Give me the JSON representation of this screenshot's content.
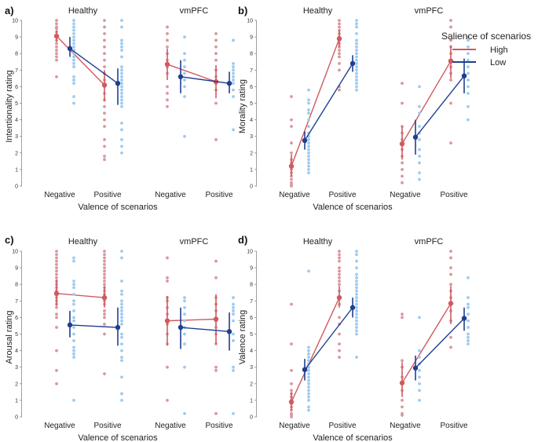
{
  "legend": {
    "title": "Salience of scenarios",
    "entries": [
      {
        "label": "High",
        "color": "#d05a5f",
        "dot_color": "#d9979d"
      },
      {
        "label": "Low",
        "color": "#1f3f8f",
        "dot_color": "#9dcbf0"
      }
    ]
  },
  "chart_data": [
    {
      "panel": "a)",
      "type": "scatter",
      "ylabel": "Intentionality rating",
      "xlabel": "Valence of scenarios",
      "ylim": [
        0,
        10
      ],
      "yticks": [
        "0",
        "1",
        "2",
        "3",
        "4",
        "5",
        "6",
        "7",
        "8",
        "9",
        "10"
      ],
      "groups": [
        "Healthy",
        "vmPFC"
      ],
      "categories": [
        "Negative",
        "Positive"
      ],
      "series": [
        {
          "name": "High",
          "group": "Healthy",
          "means": [
            9.05,
            6.1
          ],
          "errors": [
            [
              8.7,
              9.4
            ],
            [
              5.1,
              7.0
            ]
          ],
          "points": [
            [
              10,
              9.8,
              9.6,
              9.5,
              9.3,
              9.1,
              9.0,
              8.8,
              8.6,
              8.4,
              8.2,
              8.0,
              7.8,
              7.6,
              6.6
            ],
            [
              10,
              9.6,
              9.2,
              8.8,
              8.4,
              8.0,
              7.6,
              7.2,
              6.8,
              6.4,
              6.0,
              5.6,
              5.2,
              4.8,
              4.4,
              4.0,
              3.6,
              2.8,
              2.4,
              1.8,
              1.6
            ]
          ]
        },
        {
          "name": "Low",
          "group": "Healthy",
          "means": [
            8.3,
            6.2
          ],
          "errors": [
            [
              7.8,
              9.0
            ],
            [
              4.9,
              7.1
            ]
          ],
          "points": [
            [
              10,
              9.8,
              9.6,
              9.4,
              9.2,
              9.0,
              8.8,
              8.6,
              8.4,
              8.2,
              8.0,
              7.8,
              7.6,
              7.4,
              7.2,
              6.6,
              6.4,
              6.2,
              5.4,
              5.0
            ],
            [
              10,
              9.6,
              8.8,
              8.6,
              8.4,
              8.2,
              7.8,
              7.2,
              7.0,
              6.8,
              6.6,
              6.4,
              6.2,
              6.0,
              5.8,
              5.6,
              5.4,
              5.2,
              5.0,
              4.8,
              3.8,
              3.4,
              2.8,
              2.4,
              2.0
            ]
          ]
        },
        {
          "name": "High",
          "group": "vmPFC",
          "means": [
            7.35,
            6.3
          ],
          "errors": [
            [
              6.4,
              8.3
            ],
            [
              5.3,
              7.3
            ]
          ],
          "points": [
            [
              9.6,
              9.2,
              8.8,
              8.4,
              8.0,
              7.6,
              7.2,
              6.8,
              6.0,
              5.6,
              5.2,
              4.8
            ],
            [
              9.2,
              8.8,
              8.4,
              8.0,
              7.6,
              7.0,
              6.6,
              6.2,
              5.8,
              5.0,
              2.8
            ]
          ]
        },
        {
          "name": "Low",
          "group": "vmPFC",
          "means": [
            6.6,
            6.2
          ],
          "errors": [
            [
              5.6,
              7.6
            ],
            [
              5.6,
              6.9
            ]
          ],
          "points": [
            [
              9.0,
              8.0,
              7.6,
              7.2,
              6.8,
              6.4,
              6.0,
              5.4,
              3.0
            ],
            [
              8.8,
              7.4,
              7.2,
              7.0,
              6.8,
              6.6,
              6.4,
              6.2,
              5.8,
              5.4,
              3.4
            ]
          ]
        }
      ]
    },
    {
      "panel": "b)",
      "type": "scatter",
      "ylabel": "Morality rating",
      "xlabel": "Valence of scenarios",
      "ylim": [
        0,
        10
      ],
      "yticks": [
        "0",
        "1",
        "2",
        "3",
        "4",
        "5",
        "6",
        "7",
        "8",
        "9",
        "10"
      ],
      "groups": [
        "Healthy",
        "vmPFC"
      ],
      "categories": [
        "Negative",
        "Positive"
      ],
      "series": [
        {
          "name": "High",
          "group": "Healthy",
          "means": [
            1.2,
            8.9
          ],
          "errors": [
            [
              0.6,
              1.9
            ],
            [
              8.4,
              9.4
            ]
          ],
          "points": [
            [
              5.4,
              4.0,
              3.6,
              2.6,
              2.0,
              1.6,
              1.4,
              1.2,
              1.0,
              0.8,
              0.6,
              0.4,
              0.2,
              0.1,
              0.0
            ],
            [
              10,
              9.8,
              9.6,
              9.4,
              9.2,
              9.0,
              8.8,
              8.6,
              8.4,
              8.2,
              8.0,
              7.8,
              7.4,
              7.0,
              6.0,
              5.8
            ]
          ]
        },
        {
          "name": "Low",
          "group": "Healthy",
          "means": [
            2.75,
            7.4
          ],
          "errors": [
            [
              2.2,
              3.3
            ],
            [
              6.9,
              7.9
            ]
          ],
          "points": [
            [
              5.8,
              5.2,
              5.0,
              4.6,
              4.4,
              4.0,
              3.6,
              3.2,
              3.0,
              2.8,
              2.6,
              2.4,
              2.2,
              2.0,
              1.8,
              1.6,
              1.4,
              1.2,
              1.0,
              0.8
            ],
            [
              10,
              9.8,
              9.6,
              9.2,
              8.8,
              8.6,
              8.4,
              8.2,
              8.0,
              7.8,
              7.6,
              7.4,
              7.2,
              7.0,
              6.8,
              6.6,
              6.4,
              6.2,
              6.0,
              5.8
            ]
          ]
        },
        {
          "name": "High",
          "group": "vmPFC",
          "means": [
            2.55,
            7.55
          ],
          "errors": [
            [
              1.6,
              3.6
            ],
            [
              6.5,
              8.5
            ]
          ],
          "points": [
            [
              6.2,
              5.0,
              3.6,
              3.2,
              2.8,
              2.2,
              1.8,
              1.4,
              1.0,
              0.6,
              0.2
            ],
            [
              10,
              9.6,
              8.8,
              8.4,
              8.0,
              7.6,
              7.2,
              6.8,
              6.4,
              5.0,
              2.6
            ]
          ]
        },
        {
          "name": "Low",
          "group": "vmPFC",
          "means": [
            2.95,
            6.65
          ],
          "errors": [
            [
              1.9,
              4.0
            ],
            [
              5.6,
              7.7
            ]
          ],
          "points": [
            [
              6.0,
              4.8,
              4.4,
              3.6,
              3.2,
              2.8,
              2.2,
              1.8,
              1.4,
              0.8,
              0.4
            ],
            [
              9.0,
              8.8,
              8.4,
              8.0,
              7.6,
              7.2,
              6.8,
              6.4,
              6.0,
              5.6,
              4.8,
              4.0
            ]
          ]
        }
      ]
    },
    {
      "panel": "c)",
      "type": "scatter",
      "ylabel": "Arousal rating",
      "xlabel": "Valence of scenarios",
      "ylim": [
        0,
        10
      ],
      "yticks": [
        "0",
        "1",
        "2",
        "3",
        "4",
        "5",
        "6",
        "7",
        "8",
        "9",
        "10"
      ],
      "groups": [
        "Healthy",
        "vmPFC"
      ],
      "categories": [
        "Negative",
        "Positive"
      ],
      "series": [
        {
          "name": "High",
          "group": "Healthy",
          "means": [
            7.45,
            7.2
          ],
          "errors": [
            [
              6.7,
              8.3
            ],
            [
              6.6,
              7.9
            ]
          ],
          "points": [
            [
              10,
              9.8,
              9.6,
              9.4,
              9.2,
              9.0,
              8.8,
              8.6,
              8.4,
              8.2,
              8.0,
              7.8,
              7.6,
              7.4,
              7.2,
              7.0,
              6.8,
              6.6,
              6.2,
              6.0,
              5.4,
              4.0,
              2.8,
              2.0
            ],
            [
              10,
              9.8,
              9.6,
              9.4,
              9.2,
              9.0,
              8.8,
              8.6,
              8.4,
              8.2,
              8.0,
              7.8,
              7.6,
              7.4,
              7.2,
              7.0,
              6.8,
              6.4,
              6.2,
              6.0,
              5.6,
              5.0,
              2.6
            ]
          ]
        },
        {
          "name": "Low",
          "group": "Healthy",
          "means": [
            5.55,
            5.4
          ],
          "errors": [
            [
              4.8,
              6.4
            ],
            [
              4.3,
              6.6
            ]
          ],
          "points": [
            [
              9.6,
              9.4,
              8.2,
              8.0,
              7.8,
              7.4,
              7.0,
              6.8,
              6.4,
              6.0,
              5.8,
              5.4,
              5.0,
              4.6,
              4.2,
              4.0,
              3.8,
              3.6,
              1.0
            ],
            [
              10,
              9.6,
              8.2,
              7.6,
              7.4,
              7.0,
              6.8,
              6.6,
              6.4,
              6.2,
              6.0,
              5.8,
              5.6,
              5.0,
              4.8,
              4.4,
              4.0,
              3.6,
              3.4,
              2.4,
              1.4,
              1.0
            ]
          ]
        },
        {
          "name": "High",
          "group": "vmPFC",
          "means": [
            5.8,
            5.9
          ],
          "errors": [
            [
              4.3,
              7.3
            ],
            [
              4.4,
              7.4
            ]
          ],
          "points": [
            [
              9.6,
              8.4,
              8.2,
              7.2,
              7.0,
              6.6,
              6.2,
              5.6,
              5.0,
              4.4,
              3.0,
              1.0
            ],
            [
              9.4,
              8.4,
              7.2,
              6.8,
              6.4,
              5.8,
              5.4,
              5.0,
              4.4,
              3.0,
              2.8,
              0.2
            ]
          ]
        },
        {
          "name": "Low",
          "group": "vmPFC",
          "means": [
            5.4,
            5.15
          ],
          "errors": [
            [
              4.1,
              6.6
            ],
            [
              4.0,
              6.3
            ]
          ],
          "points": [
            [
              7.2,
              7.0,
              6.6,
              6.2,
              5.8,
              5.4,
              5.0,
              4.4,
              3.0,
              0.2
            ],
            [
              7.2,
              6.8,
              6.6,
              6.4,
              6.2,
              5.8,
              5.0,
              4.6,
              3.0,
              2.8,
              0.2
            ]
          ]
        }
      ]
    },
    {
      "panel": "d)",
      "type": "scatter",
      "ylabel": "Valence rating",
      "xlabel": "Valence of scenarios",
      "ylim": [
        0,
        10
      ],
      "yticks": [
        "0",
        "1",
        "2",
        "3",
        "4",
        "5",
        "6",
        "7",
        "8",
        "9",
        "10"
      ],
      "groups": [
        "Healthy",
        "vmPFC"
      ],
      "categories": [
        "Negative",
        "Positive"
      ],
      "series": [
        {
          "name": "High",
          "group": "Healthy",
          "means": [
            0.9,
            7.2
          ],
          "errors": [
            [
              0.4,
              1.5
            ],
            [
              6.6,
              7.9
            ]
          ],
          "points": [
            [
              6.8,
              4.4,
              2.8,
              2.0,
              1.6,
              1.4,
              1.2,
              1.0,
              0.8,
              0.6,
              0.4,
              0.2,
              0.1,
              0.0
            ],
            [
              10,
              9.8,
              9.6,
              9.4,
              9.0,
              8.8,
              8.6,
              8.4,
              8.2,
              8.0,
              7.6,
              7.2,
              6.8,
              6.0,
              5.6,
              5.0,
              4.4,
              4.0,
              3.6
            ]
          ]
        },
        {
          "name": "Low",
          "group": "Healthy",
          "means": [
            2.85,
            6.6
          ],
          "errors": [
            [
              2.2,
              3.5
            ],
            [
              6.0,
              7.2
            ]
          ],
          "points": [
            [
              8.8,
              4.2,
              4.0,
              3.8,
              3.6,
              3.4,
              3.2,
              3.0,
              2.8,
              2.6,
              2.4,
              2.2,
              2.0,
              1.8,
              1.6,
              1.4,
              1.2,
              1.0,
              0.6,
              0.4
            ],
            [
              10,
              9.8,
              9.4,
              9.0,
              8.6,
              8.4,
              8.2,
              8.0,
              7.8,
              7.6,
              7.4,
              7.2,
              7.0,
              6.8,
              6.6,
              6.4,
              6.2,
              6.0,
              5.8,
              5.6,
              5.4,
              5.2,
              5.0,
              3.6
            ]
          ]
        },
        {
          "name": "High",
          "group": "vmPFC",
          "means": [
            2.05,
            6.85
          ],
          "errors": [
            [
              1.2,
              3.3
            ],
            [
              5.6,
              7.9
            ]
          ],
          "points": [
            [
              6.2,
              6.0,
              3.4,
              3.0,
              2.4,
              2.0,
              1.6,
              1.0,
              0.6,
              0.2,
              0.1
            ],
            [
              10,
              9.6,
              9.0,
              8.6,
              8.0,
              7.6,
              7.2,
              6.8,
              6.4,
              5.8,
              4.8,
              4.2
            ]
          ]
        },
        {
          "name": "Low",
          "group": "vmPFC",
          "means": [
            2.95,
            5.95
          ],
          "errors": [
            [
              2.2,
              3.7
            ],
            [
              5.2,
              6.6
            ]
          ],
          "points": [
            [
              6.0,
              4.0,
              3.6,
              3.2,
              2.8,
              2.4,
              2.0,
              1.6,
              1.0
            ],
            [
              8.4,
              7.2,
              6.8,
              6.6,
              6.2,
              5.8,
              5.4,
              5.0,
              4.8,
              4.6,
              4.4
            ]
          ]
        }
      ]
    }
  ]
}
